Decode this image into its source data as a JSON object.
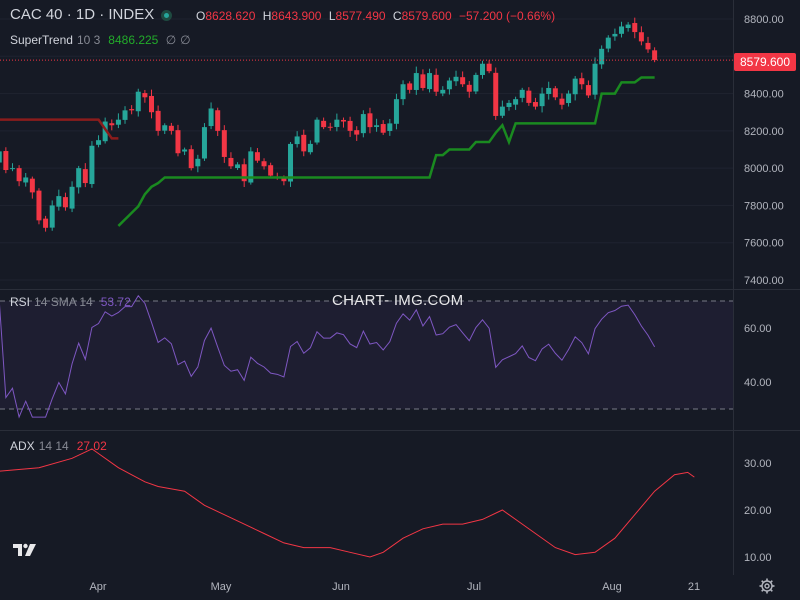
{
  "header": {
    "title": "CAC 40 · 1D · INDEX",
    "ohlc": [
      {
        "key": "O",
        "value": "8628.620"
      },
      {
        "key": "H",
        "value": "8643.900"
      },
      {
        "key": "L",
        "value": "8577.490"
      },
      {
        "key": "C",
        "value": "8579.600"
      }
    ],
    "change": "−57.200 (−0.66%)"
  },
  "supertrend": {
    "name": "SuperTrend",
    "params": "10 3",
    "value": "8486.225",
    "icon1": "∅",
    "icon2": "∅",
    "color": "#22ab2a"
  },
  "rsi_legend": {
    "name": "RSI",
    "params": "14 SMA 14",
    "value": "53.72",
    "color": "#7e57c2"
  },
  "adx_legend": {
    "name": "ADX",
    "params": "14 14",
    "value": "27.02",
    "color": "#f23645"
  },
  "watermark": "CHART- IMG.COM",
  "last_price_tag": "8579.600",
  "colors": {
    "up": "#26a69a",
    "down": "#f23645",
    "supertrend_up": "#1a8a20",
    "supertrend_down": "#8b1c1c",
    "rsi": "#7e57c2",
    "adx": "#f23645"
  },
  "chart_data": {
    "type": "candlestick",
    "price_axis": {
      "ticks": [
        7400,
        7600,
        7800,
        8000,
        8200,
        8400,
        8600,
        8800
      ],
      "labels": [
        "7400.00",
        "7600.00",
        "7800.00",
        "8000.00",
        "8200.00",
        "8400.00",
        "8600.00",
        "8800.00"
      ]
    },
    "rsi_axis": {
      "ticks": [
        40,
        60
      ],
      "labels": [
        "40.00",
        "60.00"
      ],
      "bands": [
        30,
        70
      ]
    },
    "adx_axis": {
      "ticks": [
        10,
        20,
        30
      ],
      "labels": [
        "10.00",
        "20.00",
        "30.00"
      ]
    },
    "x_labels": [
      "Apr",
      "May",
      "Jun",
      "Jul",
      "Aug",
      "21"
    ],
    "x_label_days": [
      10,
      30,
      52,
      73,
      93,
      106
    ],
    "start_date": "2025-03-01",
    "closes": [
      8050,
      8030,
      8090,
      7990,
      8000,
      7930,
      7950,
      7870,
      7720,
      7680,
      7800,
      7850,
      7790,
      7900,
      8000,
      7920,
      8120,
      8150,
      8250,
      8230,
      8260,
      8310,
      8310,
      8410,
      8380,
      8300,
      8200,
      8230,
      8200,
      8080,
      8100,
      8000,
      8050,
      8220,
      8320,
      8200,
      8060,
      8010,
      8020,
      7930,
      8090,
      8040,
      8010,
      7960,
      7950,
      7930,
      8130,
      8170,
      8090,
      8130,
      8260,
      8220,
      8220,
      8260,
      8250,
      8200,
      8180,
      8290,
      8220,
      8230,
      8190,
      8240,
      8370,
      8450,
      8420,
      8510,
      8430,
      8510,
      8410,
      8420,
      8470,
      8490,
      8450,
      8410,
      8500,
      8560,
      8520,
      8280,
      8330,
      8350,
      8370,
      8420,
      8350,
      8330,
      8400,
      8430,
      8380,
      8340,
      8400,
      8480,
      8450,
      8390,
      8560,
      8640,
      8700,
      8720,
      8760,
      8770,
      8730,
      8680,
      8637,
      8579.6
    ],
    "supertrend": {
      "down_from": 0,
      "down_to": 20,
      "down_level": 8260,
      "up_values_from_day": 20
    },
    "rsi_last": 53.72,
    "adx_last": 27.02
  }
}
